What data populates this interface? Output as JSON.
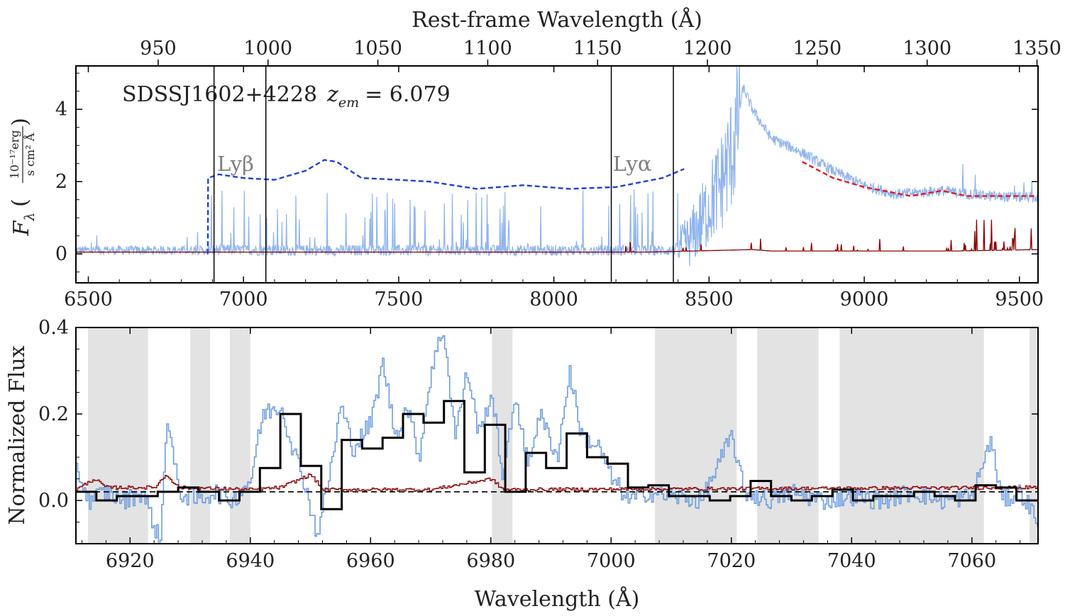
{
  "chart_data": [
    {
      "panel": "top",
      "type": "line",
      "object_label": "SDSSJ1602+4228",
      "redshift_label_symbol": "z",
      "redshift_label_subscript": "em",
      "redshift_value_text": "= 6.079",
      "redshift": 6.079,
      "xlabel_top": "Rest-frame Wavelength (Å)",
      "ylabel_symbol": "F",
      "ylabel_subscript": "λ",
      "ylabel_unit_num": "10⁻¹⁷erg",
      "ylabel_unit_den": "s cm² Å",
      "xlim": [
        6460,
        9560
      ],
      "ylim": [
        -0.8,
        5.2
      ],
      "xticks": [
        6500,
        7000,
        7500,
        8000,
        8500,
        9000,
        9500
      ],
      "yticks": [
        0,
        2,
        4
      ],
      "top_xticks": [
        950,
        1000,
        1050,
        1100,
        1150,
        1200,
        1250,
        1300,
        1350
      ],
      "vertical_lines_x": [
        6905,
        7072,
        8185,
        8385
      ],
      "line_labels": [
        {
          "text": "Lyβ",
          "x": 6915,
          "y": 2.3
        },
        {
          "text": "Lyα",
          "x": 8190,
          "y": 2.3
        }
      ],
      "series": [
        {
          "role": "observed flux",
          "color": "#8fb4ee",
          "anchors": [
            [
              6460,
              0.1
            ],
            [
              6880,
              0.1
            ],
            [
              6905,
              0.12
            ],
            [
              7072,
              0.1
            ],
            [
              8185,
              0.1
            ],
            [
              8385,
              0.1
            ],
            [
              8440,
              0.4
            ],
            [
              8480,
              1.0
            ],
            [
              8540,
              2.0
            ],
            [
              8580,
              3.0
            ],
            [
              8610,
              4.6
            ],
            [
              8640,
              4.0
            ],
            [
              8700,
              3.2
            ],
            [
              8800,
              2.8
            ],
            [
              8900,
              2.3
            ],
            [
              9000,
              1.9
            ],
            [
              9100,
              1.65
            ],
            [
              9250,
              1.75
            ],
            [
              9400,
              1.6
            ],
            [
              9560,
              1.55
            ]
          ]
        },
        {
          "role": "flux error",
          "color": "#8b0000",
          "anchors": [
            [
              6460,
              0.05
            ],
            [
              8300,
              0.05
            ],
            [
              8640,
              0.12
            ],
            [
              8700,
              0.08
            ],
            [
              9300,
              0.08
            ],
            [
              9560,
              0.12
            ]
          ]
        },
        {
          "role": "continuum model (blue dashed)",
          "color": "#1f3fdb",
          "anchors": [
            [
              6885,
              0.0
            ],
            [
              6886,
              2.1
            ],
            [
              6920,
              2.2
            ],
            [
              7000,
              2.1
            ],
            [
              7100,
              2.05
            ],
            [
              7200,
              2.3
            ],
            [
              7260,
              2.6
            ],
            [
              7300,
              2.55
            ],
            [
              7380,
              2.1
            ],
            [
              7500,
              2.05
            ],
            [
              7600,
              2.0
            ],
            [
              7750,
              1.8
            ],
            [
              7900,
              1.9
            ],
            [
              8050,
              1.8
            ],
            [
              8200,
              1.85
            ],
            [
              8350,
              2.1
            ],
            [
              8420,
              2.35
            ]
          ]
        },
        {
          "role": "continuum fit (red dashed)",
          "color": "#e31a1c",
          "anchors": [
            [
              8800,
              2.55
            ],
            [
              8900,
              2.1
            ],
            [
              9000,
              1.85
            ],
            [
              9150,
              1.6
            ],
            [
              9250,
              1.75
            ],
            [
              9330,
              1.6
            ],
            [
              9560,
              1.6
            ]
          ]
        }
      ]
    },
    {
      "panel": "bottom",
      "type": "line",
      "xlabel": "Wavelength (Å)",
      "ylabel": "Normalized Flux",
      "xlim": [
        6911,
        7071
      ],
      "ylim": [
        -0.1,
        0.4
      ],
      "xticks": [
        6920,
        6940,
        6960,
        6980,
        7000,
        7020,
        7040,
        7060
      ],
      "yticks": [
        0.0,
        0.2,
        0.4
      ],
      "ytick_labels": [
        "0.0",
        "0.2",
        "0.4"
      ],
      "masked_regions": [
        [
          6913,
          6923
        ],
        [
          6930,
          6933.3
        ],
        [
          6936.6,
          6940
        ],
        [
          6980.2,
          6983.6
        ],
        [
          7007.3,
          7020.9
        ],
        [
          7024.3,
          7034.5
        ],
        [
          7038,
          7062
        ],
        [
          7069.6,
          7071
        ]
      ],
      "reference_line_y": 0.02,
      "binned_flux": {
        "color": "#000000",
        "edges": [
          6911,
          6914.4,
          6917.8,
          6921.2,
          6924.6,
          6928,
          6931.4,
          6934.8,
          6938.2,
          6941.6,
          6945,
          6948.4,
          6951.8,
          6955.2,
          6958.6,
          6962,
          6965.4,
          6968.8,
          6972.2,
          6975.6,
          6979,
          6982.4,
          6985.8,
          6989.2,
          6992.6,
          6996,
          6999.4,
          7002.8,
          7006.2,
          7009.6,
          7013,
          7016.4,
          7019.8,
          7023.2,
          7026.6,
          7030,
          7033.4,
          7036.8,
          7040.2,
          7043.6,
          7047,
          7050.4,
          7053.8,
          7057.2,
          7060.6,
          7064,
          7067.4,
          7071
        ],
        "values": [
          0.02,
          0.0,
          0.01,
          0.01,
          0.02,
          0.03,
          0.02,
          0.0,
          0.02,
          0.075,
          0.2,
          0.08,
          -0.02,
          0.14,
          0.12,
          0.145,
          0.2,
          0.18,
          0.23,
          0.065,
          0.175,
          0.02,
          0.11,
          0.075,
          0.155,
          0.1,
          0.085,
          0.03,
          0.035,
          0.01,
          0.01,
          0.0,
          0.01,
          0.045,
          0.01,
          0.0,
          0.01,
          0.025,
          0.0,
          0.01,
          0.01,
          0.02,
          0.01,
          0.0,
          0.035,
          0.03,
          0.0
        ]
      },
      "raw_flux": {
        "color": "#6d9de0",
        "anchors": [
          [
            6911,
            0.08
          ],
          [
            6913,
            0.0
          ],
          [
            6916,
            0.02
          ],
          [
            6919,
            0.0
          ],
          [
            6922,
            0.02
          ],
          [
            6925,
            -0.1
          ],
          [
            6926,
            0.2
          ],
          [
            6928,
            0.02
          ],
          [
            6931,
            0.0
          ],
          [
            6934,
            0.02
          ],
          [
            6937,
            0.0
          ],
          [
            6940,
            0.05
          ],
          [
            6942,
            0.2
          ],
          [
            6945,
            0.22
          ],
          [
            6947,
            0.12
          ],
          [
            6949,
            0.04
          ],
          [
            6951,
            -0.08
          ],
          [
            6953,
            0.05
          ],
          [
            6955,
            0.22
          ],
          [
            6957,
            0.12
          ],
          [
            6960,
            0.18
          ],
          [
            6962,
            0.32
          ],
          [
            6964,
            0.15
          ],
          [
            6966,
            0.22
          ],
          [
            6968,
            0.1
          ],
          [
            6970,
            0.3
          ],
          [
            6972,
            0.4
          ],
          [
            6974,
            0.15
          ],
          [
            6976,
            0.3
          ],
          [
            6978,
            0.15
          ],
          [
            6980,
            0.25
          ],
          [
            6982,
            0.05
          ],
          [
            6984,
            0.25
          ],
          [
            6986,
            0.08
          ],
          [
            6988,
            0.2
          ],
          [
            6991,
            0.1
          ],
          [
            6993,
            0.3
          ],
          [
            6995,
            0.15
          ],
          [
            6998,
            0.12
          ],
          [
            7000,
            0.05
          ],
          [
            7003,
            0.0
          ],
          [
            7006,
            0.02
          ],
          [
            7010,
            0.01
          ],
          [
            7015,
            0.0
          ],
          [
            7020,
            0.15
          ],
          [
            7022,
            0.02
          ],
          [
            7026,
            0.0
          ],
          [
            7030,
            0.02
          ],
          [
            7035,
            0.0
          ],
          [
            7040,
            0.01
          ],
          [
            7045,
            0.0
          ],
          [
            7050,
            0.02
          ],
          [
            7055,
            0.0
          ],
          [
            7060,
            0.01
          ],
          [
            7063,
            0.14
          ],
          [
            7065,
            0.0
          ],
          [
            7068,
            0.02
          ],
          [
            7071,
            -0.05
          ]
        ]
      },
      "error_flux": {
        "color": "#8b0000",
        "anchors": [
          [
            6911,
            0.025
          ],
          [
            6914,
            0.05
          ],
          [
            6916,
            0.03
          ],
          [
            6924,
            0.03
          ],
          [
            6926,
            0.06
          ],
          [
            6928,
            0.03
          ],
          [
            6940,
            0.025
          ],
          [
            6945,
            0.03
          ],
          [
            6950,
            0.06
          ],
          [
            6952,
            0.025
          ],
          [
            6970,
            0.025
          ],
          [
            6980,
            0.05
          ],
          [
            6982,
            0.025
          ],
          [
            7071,
            0.03
          ]
        ]
      }
    }
  ]
}
